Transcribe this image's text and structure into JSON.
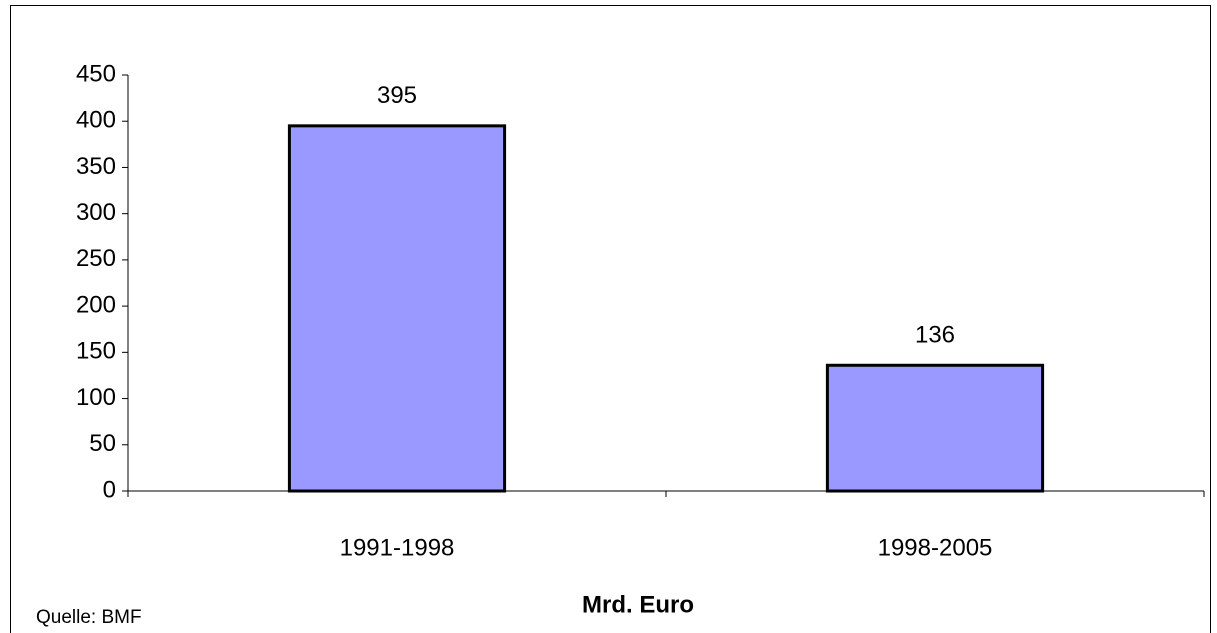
{
  "chart_data": {
    "type": "bar",
    "categories": [
      "1991-1998",
      "1998-2005"
    ],
    "values": [
      395,
      136
    ],
    "color": "#9999ff",
    "ylim": [
      0,
      450
    ],
    "yticks": [
      0,
      50,
      100,
      150,
      200,
      250,
      300,
      350,
      400,
      450
    ],
    "x_label": "Mrd. Euro",
    "source": "Quelle: BMF",
    "grid": false
  }
}
